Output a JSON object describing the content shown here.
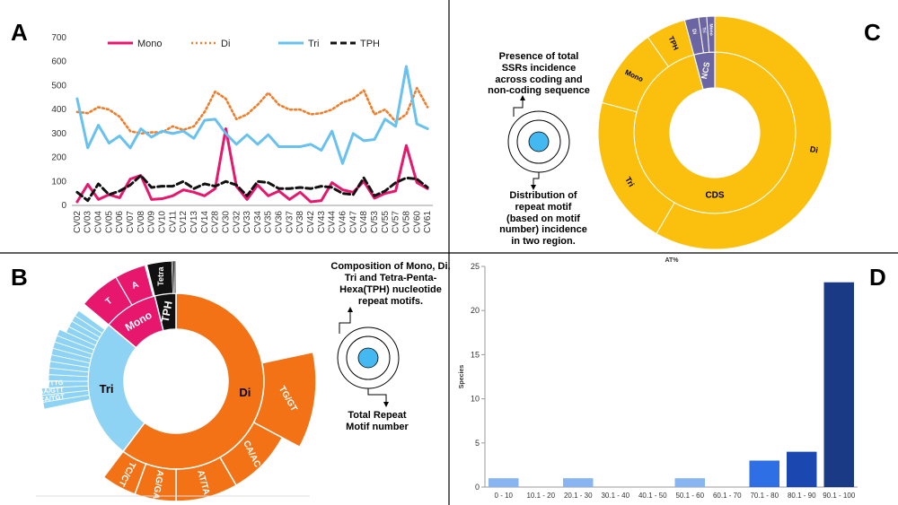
{
  "panels": {
    "a": "A",
    "b": "B",
    "c": "C",
    "d": "D"
  },
  "colors": {
    "mono": "#e6176d",
    "di": "#ef7d2a",
    "tri": "#68c1ee",
    "tph": "#111111",
    "di_solid": "#f47216",
    "tri_light": "#8fd3f4",
    "c_gold": "#fbbf0d",
    "c_purple": "#6b66a3",
    "d_light": "#88b4f2",
    "d_mid": "#2f6fe6",
    "d_blue": "#1b48b0",
    "d_navy": "#1a3a86",
    "circle_fill": "#44b8f0"
  },
  "panel_b_text": {
    "title": [
      "Composition of Mono, Di,",
      "Tri and Tetra-Penta-",
      "Hexa(TPH) nucleotide",
      "repeat motifs."
    ],
    "bottom": [
      "Total Repeat",
      "Motif number"
    ]
  },
  "panel_c_text": {
    "top": [
      "Presence of total",
      "SSRs incidence",
      "across coding and",
      "non-coding sequence"
    ],
    "bottom": [
      "Distribution of",
      "repeat motif",
      "(based on motif",
      "number) incidence",
      "in two region."
    ]
  },
  "chart_data": [
    {
      "type": "line",
      "panel": "A",
      "x": [
        "CV02",
        "CV03",
        "CV04",
        "CV05",
        "CV06",
        "CV07",
        "CV08",
        "CV09",
        "CV10",
        "CV11",
        "CV12",
        "CV13",
        "CV14",
        "CV28",
        "CV30",
        "CV32",
        "CV33",
        "CV34",
        "CV35",
        "CV36",
        "CV37",
        "CV38",
        "CV42",
        "CV43",
        "CV44",
        "CV46",
        "CV47",
        "CV48",
        "CV53",
        "CV55",
        "CV57",
        "CV58",
        "CV60",
        "CV61"
      ],
      "ylim": [
        0,
        700
      ],
      "yticks": [
        0,
        100,
        200,
        300,
        400,
        500,
        600,
        700
      ],
      "legend_position": "top",
      "series": [
        {
          "name": "Mono",
          "style": "solid",
          "values": [
            15,
            88,
            25,
            45,
            32,
            110,
            125,
            25,
            28,
            40,
            65,
            55,
            40,
            70,
            320,
            80,
            25,
            85,
            40,
            60,
            25,
            55,
            15,
            20,
            95,
            65,
            55,
            100,
            30,
            50,
            60,
            250,
            95,
            70
          ]
        },
        {
          "name": "Di",
          "style": "dotted",
          "values": [
            390,
            385,
            410,
            400,
            370,
            310,
            300,
            305,
            305,
            330,
            315,
            330,
            390,
            475,
            445,
            360,
            380,
            420,
            470,
            420,
            400,
            400,
            380,
            385,
            400,
            430,
            445,
            480,
            380,
            400,
            350,
            380,
            490,
            410
          ]
        },
        {
          "name": "Tri",
          "style": "solid",
          "values": [
            445,
            240,
            335,
            260,
            290,
            240,
            320,
            285,
            310,
            300,
            310,
            280,
            355,
            360,
            300,
            255,
            295,
            255,
            295,
            245,
            245,
            245,
            255,
            230,
            310,
            175,
            300,
            270,
            275,
            360,
            330,
            580,
            340,
            320
          ]
        },
        {
          "name": "TPH",
          "style": "dashed",
          "values": [
            55,
            20,
            90,
            45,
            60,
            85,
            125,
            75,
            80,
            80,
            100,
            70,
            90,
            80,
            100,
            85,
            40,
            100,
            95,
            70,
            70,
            75,
            70,
            80,
            75,
            50,
            45,
            115,
            40,
            60,
            95,
            115,
            110,
            75
          ]
        }
      ]
    },
    {
      "type": "pie",
      "panel": "B",
      "inner_ring": [
        {
          "label": "Di",
          "value": 60
        },
        {
          "label": "Tri",
          "value": 23
        },
        {
          "label": "Mono",
          "value": 10
        },
        {
          "label": "TPH",
          "value": 6
        }
      ],
      "outer_labels": [
        "T",
        "A",
        "Tetra",
        "TG/GT",
        "CA/AC",
        "AT/TA",
        "AG/GA",
        "TC/CT",
        "AAC/TTG",
        "CAA/GTT",
        "ACA/TGT"
      ]
    },
    {
      "type": "pie",
      "panel": "C",
      "inner_ring": [
        {
          "label": "CDS",
          "value": 96
        },
        {
          "label": "NCS",
          "value": 4
        }
      ],
      "outer_ring": [
        {
          "label": "Di",
          "value": 62
        },
        {
          "label": "Tri",
          "value": 20
        },
        {
          "label": "Mono",
          "value": 10
        },
        {
          "label": "TPH",
          "value": 4
        },
        {
          "label": "Di",
          "value": 1.5
        },
        {
          "label": "Tri",
          "value": 1
        },
        {
          "label": "Mono",
          "value": 1.5
        }
      ]
    },
    {
      "type": "bar",
      "panel": "D",
      "title": "AT%",
      "ylabel": "Species",
      "categories": [
        "0 - 10",
        "10.1 - 20",
        "20.1 - 30",
        "30.1 - 40",
        "40.1 - 50",
        "50.1 - 60",
        "60.1 - 70",
        "70.1 - 80",
        "80.1 - 90",
        "90.1 - 100"
      ],
      "values": [
        1,
        0,
        1,
        0,
        0,
        1,
        0,
        3,
        4,
        23.2
      ],
      "ylim": [
        0,
        25
      ],
      "yticks": [
        0,
        5,
        10,
        15,
        20,
        25
      ]
    }
  ]
}
